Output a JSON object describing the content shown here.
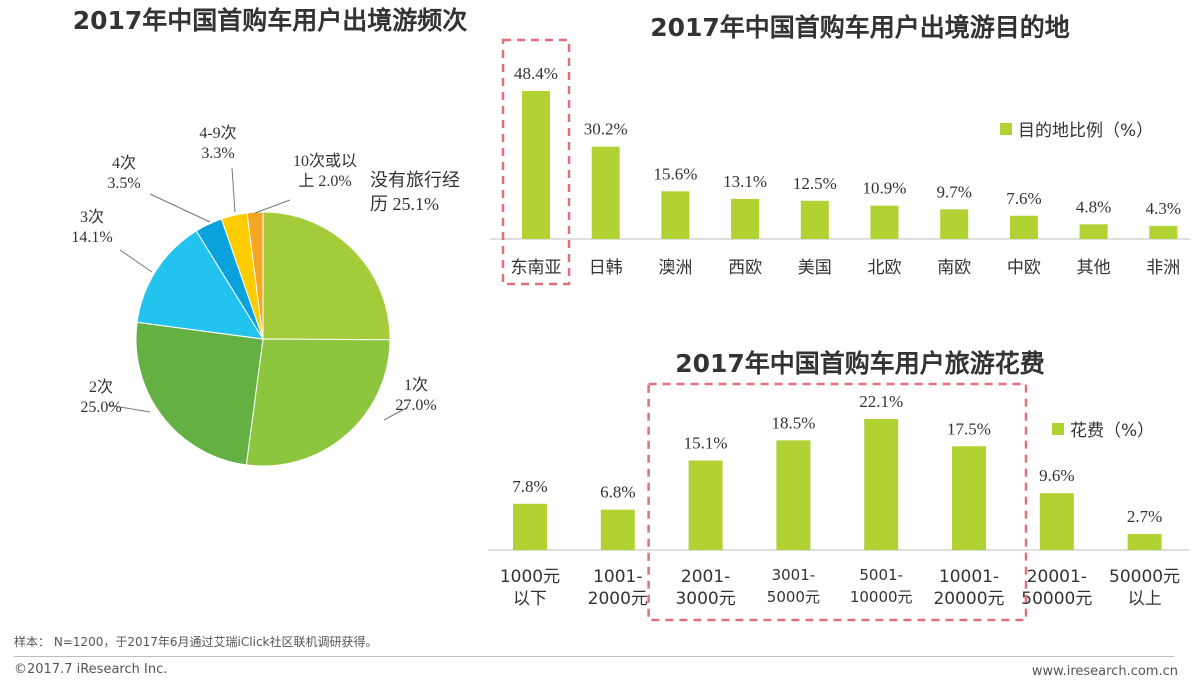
{
  "chart_data": [
    {
      "type": "pie",
      "title": "2017年中国首购车用户出境游频次",
      "slices": [
        {
          "label": "没有旅行经历",
          "display": "没有旅行经\n历 25.1%",
          "value": 25.1,
          "color": "#a4cc3a"
        },
        {
          "label": "1次",
          "display": "1次\n27.0%",
          "value": 27.0,
          "color": "#8cc63f"
        },
        {
          "label": "2次",
          "display": "2次\n25.0%",
          "value": 25.0,
          "color": "#65b043"
        },
        {
          "label": "3次",
          "display": "3次\n14.1%",
          "value": 14.1,
          "color": "#22c4ef"
        },
        {
          "label": "4次",
          "display": "4次\n3.5%",
          "value": 3.5,
          "color": "#0aa2dc"
        },
        {
          "label": "4-9次",
          "display": "4-9次\n3.3%",
          "value": 3.3,
          "color": "#ffcc00"
        },
        {
          "label": "10次或以上",
          "display": "10次或以\n上 2.0%",
          "value": 2.0,
          "color": "#f5a623"
        }
      ]
    },
    {
      "type": "bar",
      "title": "2017年中国首购车用户出境游目的地",
      "legend": "目的地比例（%）",
      "categories": [
        "东南亚",
        "日韩",
        "澳洲",
        "西欧",
        "美国",
        "北欧",
        "南欧",
        "中欧",
        "其他",
        "非洲"
      ],
      "values": [
        48.4,
        30.2,
        15.6,
        13.1,
        12.5,
        10.9,
        9.7,
        7.6,
        4.8,
        4.3
      ],
      "labels": [
        "48.4%",
        "30.2%",
        "15.6%",
        "13.1%",
        "12.5%",
        "10.9%",
        "9.7%",
        "7.6%",
        "4.8%",
        "4.3%"
      ],
      "color": "#b2d234",
      "highlight": [
        0
      ]
    },
    {
      "type": "bar",
      "title": "2017年中国首购车用户旅游花费",
      "legend": "花费（%）",
      "categories": [
        [
          "1000元",
          "以下"
        ],
        [
          "1001-",
          "2000元"
        ],
        [
          "2001-",
          "3000元"
        ],
        [
          "3001-",
          "5000元"
        ],
        [
          "5001-",
          "10000元"
        ],
        [
          "10001-",
          "20000元"
        ],
        [
          "20001-",
          "50000元"
        ],
        [
          "50000元",
          "以上"
        ]
      ],
      "values": [
        7.8,
        6.8,
        15.1,
        18.5,
        22.1,
        17.5,
        9.6,
        2.7
      ],
      "labels": [
        "7.8%",
        "6.8%",
        "15.1%",
        "18.5%",
        "22.1%",
        "17.5%",
        "9.6%",
        "2.7%"
      ],
      "color": "#b2d234",
      "highlight": [
        2,
        3,
        4,
        5
      ]
    }
  ],
  "footer": {
    "sample_note": "样本： N=1200，于2017年6月通过艾瑞iClick社区联机调研获得。",
    "copyright": "©2017.7 iResearch Inc.",
    "site": "www.iresearch.com.cn"
  }
}
